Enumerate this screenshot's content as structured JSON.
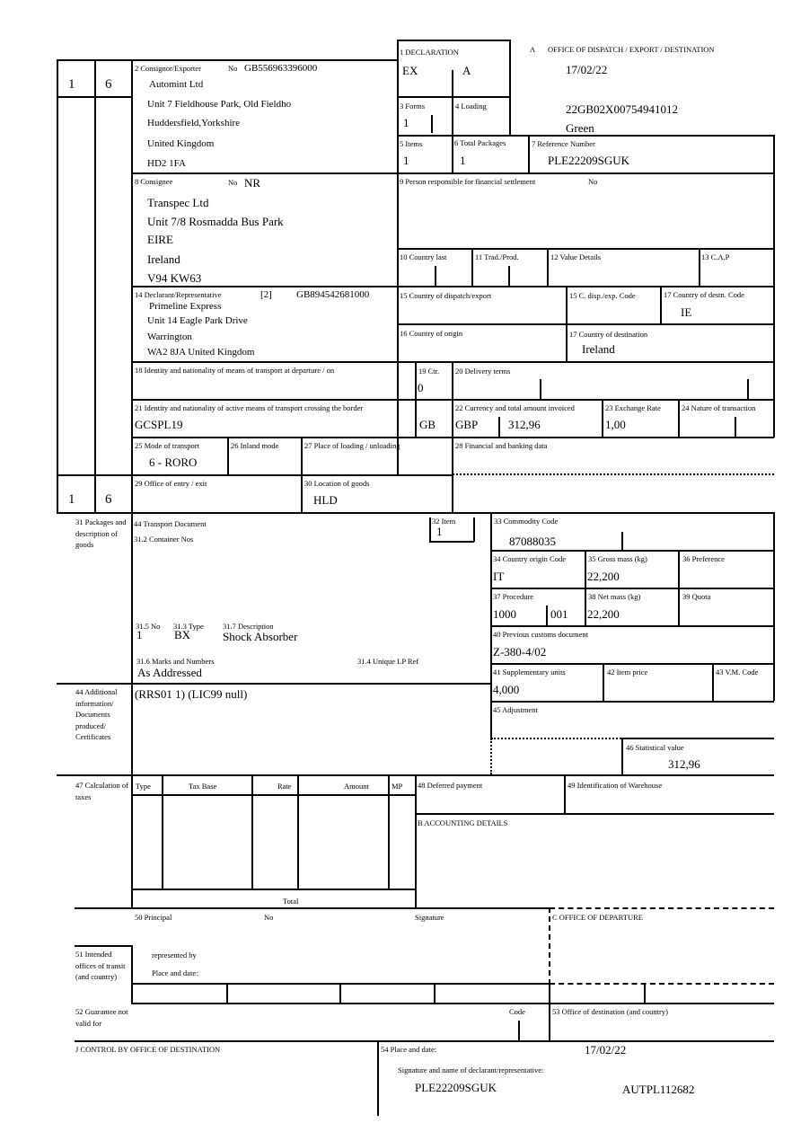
{
  "header": {
    "box_a_letter": "A",
    "box_a_title": "OFFICE OF DISPATCH / EXPORT / DESTINATION",
    "date": "17/02/22",
    "mrn": "22GB02X00754941012",
    "route": "Green"
  },
  "side": {
    "form_top": "1",
    "copy_top": "6",
    "form_bottom": "1",
    "copy_bottom": "6"
  },
  "box1": {
    "label": "1 DECLARATION",
    "v1": "EX",
    "v2": "A"
  },
  "box2": {
    "label": "2 Consignor/Exporter",
    "no_label": "No",
    "no": "GB556963396000",
    "lines": [
      "Automint Ltd",
      "Unit 7 Fieldhouse Park, Old Fieldho",
      "Huddersfield,Yorkshire",
      "United Kingdom",
      "HD2 1FA"
    ]
  },
  "box3": {
    "label": "3 Forms",
    "value": "1"
  },
  "box4": {
    "label": "4 Loading"
  },
  "box5": {
    "label": "5 Items",
    "value": "1"
  },
  "box6": {
    "label": "6 Total Packages",
    "value": "1"
  },
  "box7": {
    "label": "7 Reference Number",
    "value": "PLE22209SGUK"
  },
  "box8": {
    "label": "8 Consignee",
    "no_label": "No",
    "no": "NR",
    "lines": [
      "Transpec Ltd",
      "Unit 7/8 Rosmadda Bus Park",
      "EIRE",
      "Ireland",
      "V94 KW63"
    ]
  },
  "box9": {
    "label": "9 Person responsible for financial settlement",
    "no_label": "No"
  },
  "box10": {
    "label": "10 Country last"
  },
  "box11": {
    "label": "11 Trad./Prod."
  },
  "box12": {
    "label": "12 Value Details"
  },
  "box13": {
    "label": "13 C.A.P"
  },
  "box14": {
    "label": "14 Declarant/Representative",
    "code": "[2]",
    "no": "GB894542681000",
    "lines": [
      "Primeline Express",
      "Unit 14 Eagle Park Drive",
      "Warrington",
      "WA2 8JA United Kingdom"
    ]
  },
  "box15": {
    "label": "15 Country of dispatch/export"
  },
  "box15c": {
    "label": "15 C. disp./exp. Code"
  },
  "box17c": {
    "label": "17 Country of destn. Code",
    "value": "IE"
  },
  "box16": {
    "label": "16 Country of origin"
  },
  "box17": {
    "label": "17 Country of destination",
    "value": "Ireland"
  },
  "box18": {
    "label": "18 Identity and nationality of means of transport at departure / on"
  },
  "box19": {
    "label": "19 Ctr.",
    "value": "0"
  },
  "box20": {
    "label": "20 Delivery terms"
  },
  "box21": {
    "label": "21 Identity and nationality of active means of transport crossing the border",
    "value": "GCSPL19",
    "nationality": "GB"
  },
  "box22": {
    "label": "22 Currency and total amount invoiced",
    "currency": "GBP",
    "amount": "312,96"
  },
  "box23": {
    "label": "23 Exchange Rate",
    "value": "1,00"
  },
  "box24": {
    "label": "24 Nature of transaction"
  },
  "box25": {
    "label": "25 Mode of transport",
    "value": "6 - RORO"
  },
  "box26": {
    "label": "26 Inland mode"
  },
  "box27": {
    "label": "27 Place of loading / unloading"
  },
  "box28": {
    "label": "28 Financial and banking data"
  },
  "box29": {
    "label": "29 Office of entry / exit"
  },
  "box30": {
    "label": "30 Location of goods",
    "value": "HLD"
  },
  "box31": {
    "side_label": "31 Packages and description of goods",
    "transport_doc": "44 Transport Document",
    "container": "31.2 Container Nos",
    "no_label": "31.5 No",
    "no": "1",
    "type_label": "31.3 Type",
    "type": "BX",
    "desc_label": "31.7 Description",
    "desc": "Shock Absorber",
    "marks_label": "31.6 Marks and Numbers",
    "marks": "As Addressed",
    "lp_label": "31.4 Unique LP Ref"
  },
  "box32": {
    "label": "32 Item",
    "value": "1"
  },
  "box33": {
    "label": "33 Commodity Code",
    "value": "87088035"
  },
  "box34": {
    "label": "34 Country origin Code",
    "value": "IT"
  },
  "box35": {
    "label": "35 Gross mass (kg)",
    "value": "22,200"
  },
  "box36": {
    "label": "36 Preference"
  },
  "box37": {
    "label": "37 Procedure",
    "v1": "1000",
    "v2": "001"
  },
  "box38": {
    "label": "38 Net mass (kg)",
    "value": "22,200"
  },
  "box39": {
    "label": "39 Quota"
  },
  "box40": {
    "label": "40 Previous customs document",
    "value": "Z-380-4/02"
  },
  "box41": {
    "label": "41 Supplementary units",
    "value": "4,000"
  },
  "box42": {
    "label": "42 Item price"
  },
  "box43": {
    "label": "43 V.M. Code"
  },
  "box44": {
    "side_label": "44 Additional information/ Documents produced/ Certificates",
    "value": "(RRS01 1) (LIC99 null)"
  },
  "box45": {
    "label": "45 Adjustment"
  },
  "box46": {
    "label": "46 Statistical value",
    "value": "312,96"
  },
  "box47": {
    "side_label": "47 Calculation of taxes",
    "columns": [
      "Type",
      "Tax Base",
      "Rate",
      "Amount",
      "MP"
    ],
    "total": "Total"
  },
  "box48": {
    "label": "48 Deferred payment"
  },
  "box49": {
    "label": "49 Identification of Warehouse"
  },
  "boxB": {
    "label": "B ACCOUNTING DETAILS"
  },
  "box50": {
    "label": "50 Principal",
    "no_label": "No",
    "signature": "Signature",
    "represented": "represented by",
    "place": "Place and date:"
  },
  "boxC": {
    "label": "C OFFICE OF DEPARTURE"
  },
  "box51": {
    "side_label": "51 Intended offices of transit (and country)"
  },
  "box52": {
    "side_label": "52 Guarantee not valid for",
    "code": "Code"
  },
  "box53": {
    "label": "53 Office of destination (and country)"
  },
  "boxJ": {
    "label": "J CONTROL BY OFFICE OF DESTINATION"
  },
  "box54": {
    "label": "54 Place and date:",
    "date": "17/02/22",
    "sig_label": "Signature and name of declarant/representative:",
    "name": "PLE22209SGUK",
    "ref": "AUTPL112682"
  }
}
